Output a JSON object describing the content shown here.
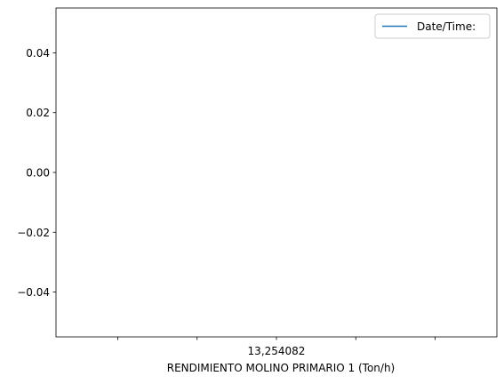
{
  "chart_data": {
    "type": "line",
    "title": "",
    "xlabel": "RENDIMIENTO MOLINO PRIMARIO 1 (Ton/h)",
    "ylabel": "",
    "x_tick_labels": [
      "",
      "",
      "13,254082",
      "",
      ""
    ],
    "y_ticks": [
      -0.04,
      -0.02,
      0.0,
      0.02,
      0.04
    ],
    "y_tick_labels": [
      "−0.04",
      "−0.02",
      "0.00",
      "0.02",
      "0.04"
    ],
    "ylim": [
      -0.055,
      0.055
    ],
    "series": [
      {
        "name": "Date/Time:",
        "color": "#1f77b4",
        "x": [],
        "values": []
      }
    ],
    "legend_position": "top-right",
    "grid": false
  }
}
